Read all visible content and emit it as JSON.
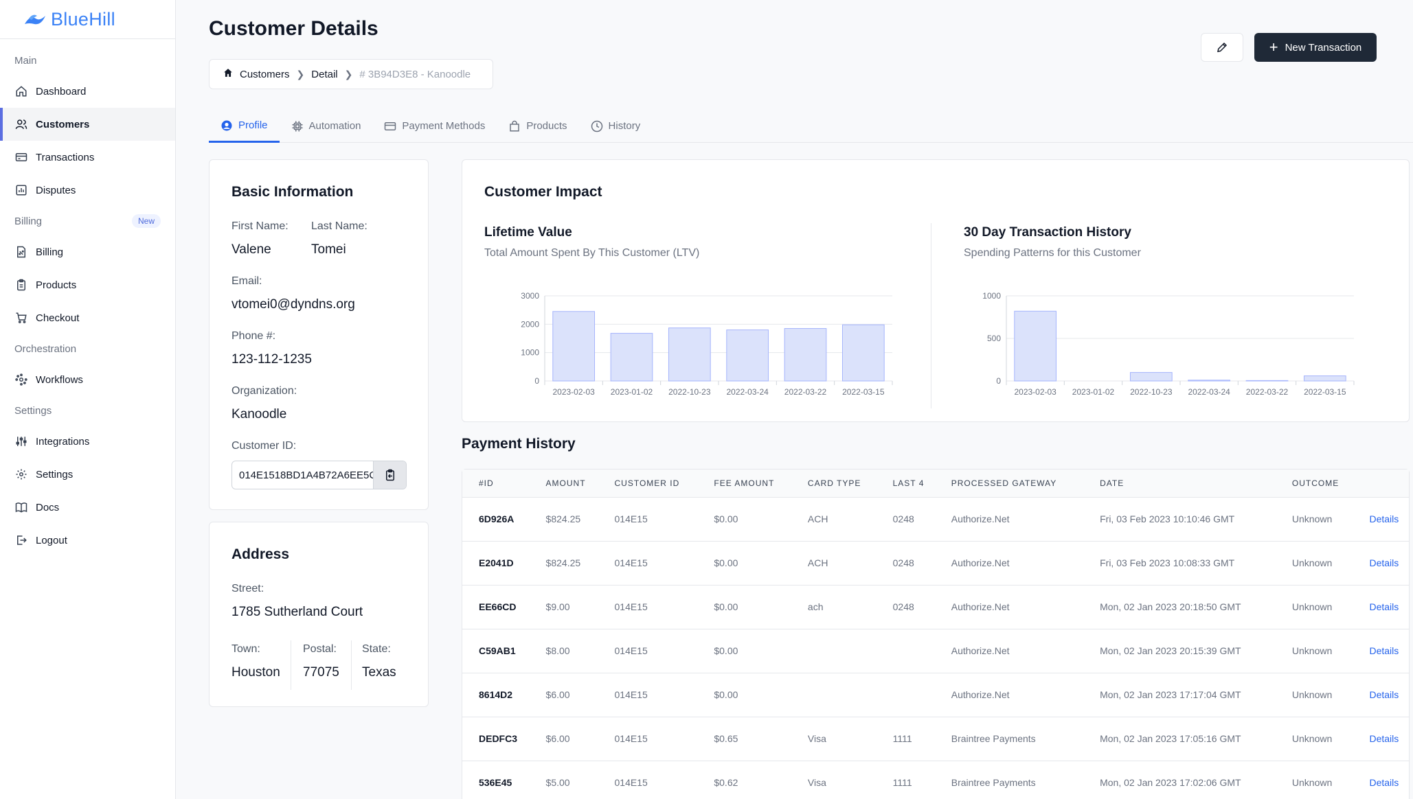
{
  "app": {
    "brand": "BlueHill",
    "brand_color": "#3b82f6",
    "accent_color": "#2563eb"
  },
  "sidebar": {
    "sections": {
      "main": "Main",
      "billing": "Billing",
      "billing_badge": "New",
      "orchestration": "Orchestration",
      "settings": "Settings"
    },
    "items": {
      "dashboard": "Dashboard",
      "customers": "Customers",
      "transactions": "Transactions",
      "disputes": "Disputes",
      "billing": "Billing",
      "products": "Products",
      "checkout": "Checkout",
      "workflows": "Workflows",
      "integrations": "Integrations",
      "settings": "Settings",
      "docs": "Docs",
      "logout": "Logout"
    }
  },
  "header": {
    "title": "Customer Details",
    "breadcrumb": {
      "root": "Customers",
      "middle": "Detail",
      "current": "# 3B94D3E8 - Kanoodle"
    },
    "new_transaction": "New Transaction"
  },
  "tabs": {
    "profile": "Profile",
    "automation": "Automation",
    "payment_methods": "Payment Methods",
    "products": "Products",
    "history": "History"
  },
  "basic_info": {
    "title": "Basic Information",
    "first_name_label": "First Name:",
    "first_name": "Valene",
    "last_name_label": "Last Name:",
    "last_name": "Tomei",
    "email_label": "Email:",
    "email": "vtomei0@dyndns.org",
    "phone_label": "Phone #:",
    "phone": "123-112-1235",
    "org_label": "Organization:",
    "org": "Kanoodle",
    "customer_id_label": "Customer ID:",
    "customer_id": "014E1518BD1A4B72A6EE5C"
  },
  "address": {
    "title": "Address",
    "street_label": "Street:",
    "street": "1785 Sutherland Court",
    "town_label": "Town:",
    "town": "Houston",
    "postal_label": "Postal:",
    "postal": "77075",
    "state_label": "State:",
    "state": "Texas"
  },
  "impact": {
    "title": "Customer Impact",
    "ltv_title": "Lifetime Value",
    "ltv_desc": "Total Amount Spent By This Customer (LTV)",
    "hist_title": "30 Day Transaction History",
    "hist_desc": "Spending Patterns for this Customer"
  },
  "chart_data": [
    {
      "type": "bar",
      "title": "Lifetime Value",
      "categories": [
        "2023-02-03",
        "2023-01-02",
        "2022-10-23",
        "2022-03-24",
        "2022-03-22",
        "2022-03-15"
      ],
      "values": [
        2450,
        1680,
        1870,
        1800,
        1850,
        1980
      ],
      "ylim": [
        0,
        3000
      ],
      "yticks": [
        0,
        1000,
        2000,
        3000
      ],
      "bar_color": "#dbe2fb",
      "bar_stroke": "#a5b4fc"
    },
    {
      "type": "bar",
      "title": "30 Day Transaction History",
      "categories": [
        "2023-02-03",
        "2023-01-02",
        "2022-10-23",
        "2022-03-24",
        "2022-03-22",
        "2022-03-15"
      ],
      "values": [
        820,
        0,
        100,
        10,
        5,
        60
      ],
      "ylim": [
        0,
        1000
      ],
      "yticks": [
        0,
        500,
        1000
      ],
      "bar_color": "#dbe2fb",
      "bar_stroke": "#a5b4fc"
    }
  ],
  "payment_history": {
    "title": "Payment History",
    "columns": [
      "#ID",
      "AMOUNT",
      "CUSTOMER ID",
      "FEE AMOUNT",
      "CARD TYPE",
      "LAST 4",
      "PROCESSED GATEWAY",
      "DATE",
      "OUTCOME",
      ""
    ],
    "rows": [
      [
        "6D926A",
        "$824.25",
        "014E15",
        "$0.00",
        "ACH",
        "0248",
        "Authorize.Net",
        "Fri, 03 Feb 2023 10:10:46 GMT",
        "Unknown",
        "Details"
      ],
      [
        "E2041D",
        "$824.25",
        "014E15",
        "$0.00",
        "ACH",
        "0248",
        "Authorize.Net",
        "Fri, 03 Feb 2023 10:08:33 GMT",
        "Unknown",
        "Details"
      ],
      [
        "EE66CD",
        "$9.00",
        "014E15",
        "$0.00",
        "ach",
        "0248",
        "Authorize.Net",
        "Mon, 02 Jan 2023 20:18:50 GMT",
        "Unknown",
        "Details"
      ],
      [
        "C59AB1",
        "$8.00",
        "014E15",
        "$0.00",
        "",
        "",
        "Authorize.Net",
        "Mon, 02 Jan 2023 20:15:39 GMT",
        "Unknown",
        "Details"
      ],
      [
        "8614D2",
        "$6.00",
        "014E15",
        "$0.00",
        "",
        "",
        "Authorize.Net",
        "Mon, 02 Jan 2023 17:17:04 GMT",
        "Unknown",
        "Details"
      ],
      [
        "DEDFC3",
        "$6.00",
        "014E15",
        "$0.65",
        "Visa",
        "1111",
        "Braintree Payments",
        "Mon, 02 Jan 2023 17:05:16 GMT",
        "Unknown",
        "Details"
      ],
      [
        "536E45",
        "$5.00",
        "014E15",
        "$0.62",
        "Visa",
        "1111",
        "Braintree Payments",
        "Mon, 02 Jan 2023 17:02:06 GMT",
        "Unknown",
        "Details"
      ]
    ]
  }
}
